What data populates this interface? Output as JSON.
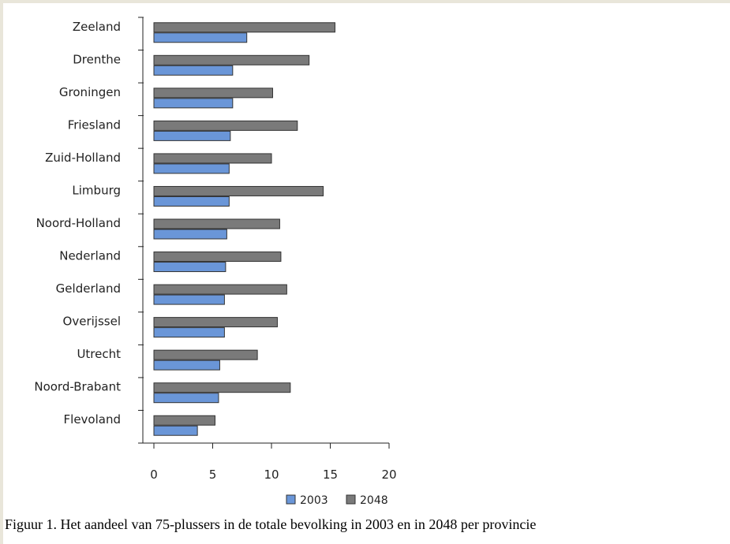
{
  "caption": "Figuur 1. Het aandeel van 75-plussers in de totale bevolking in 2003 en in 2048 per provincie",
  "chart_data": {
    "type": "bar",
    "orientation": "horizontal",
    "categories": [
      "Zeeland",
      "Drenthe",
      "Groningen",
      "Friesland",
      "Zuid-Holland",
      "Limburg",
      "Noord-Holland",
      "Nederland",
      "Gelderland",
      "Overijssel",
      "Utrecht",
      "Noord-Brabant",
      "Flevoland"
    ],
    "series": [
      {
        "name": "2003",
        "color": "#6a96d8",
        "values": [
          7.9,
          6.7,
          6.7,
          6.5,
          6.4,
          6.4,
          6.2,
          6.1,
          6.0,
          6.0,
          5.6,
          5.5,
          3.7
        ]
      },
      {
        "name": "2048",
        "color": "#7a7a7a",
        "values": [
          15.4,
          13.2,
          10.1,
          12.2,
          10.0,
          14.4,
          10.7,
          10.8,
          11.3,
          10.5,
          8.8,
          11.6,
          5.2
        ]
      }
    ],
    "xlim": [
      0,
      20
    ],
    "xticks": [
      0,
      5,
      10,
      15,
      20
    ],
    "xtick_labels": [
      "0",
      "5",
      "10",
      "15",
      "20"
    ],
    "legend_position": "bottom-center",
    "grid": false
  }
}
